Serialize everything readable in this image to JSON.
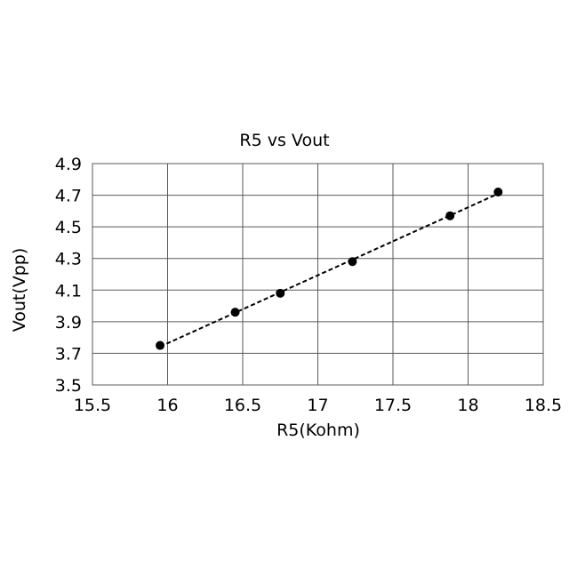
{
  "chart_data": {
    "type": "scatter",
    "title": "R5 vs Vout",
    "xlabel": "R5(Kohm)",
    "ylabel": "Vout(Vpp)",
    "xlim": [
      15.5,
      18.5
    ],
    "ylim": [
      3.5,
      4.9
    ],
    "xticks": [
      15.5,
      16,
      16.5,
      17,
      17.5,
      18,
      18.5
    ],
    "yticks": [
      3.5,
      3.7,
      3.9,
      4.1,
      4.3,
      4.5,
      4.7,
      4.9
    ],
    "xtick_labels": [
      "15.5",
      "16",
      "16.5",
      "17",
      "17.5",
      "18",
      "18.5"
    ],
    "ytick_labels": [
      "3.5",
      "3.7",
      "3.9",
      "4.1",
      "4.3",
      "4.5",
      "4.7",
      "4.9"
    ],
    "grid": true,
    "trendline": "linear-dashed",
    "series": [
      {
        "x": [
          15.95,
          16.45,
          16.75,
          17.23,
          17.88,
          18.2
        ],
        "y": [
          3.75,
          3.96,
          4.08,
          4.28,
          4.57,
          4.72
        ]
      }
    ]
  }
}
